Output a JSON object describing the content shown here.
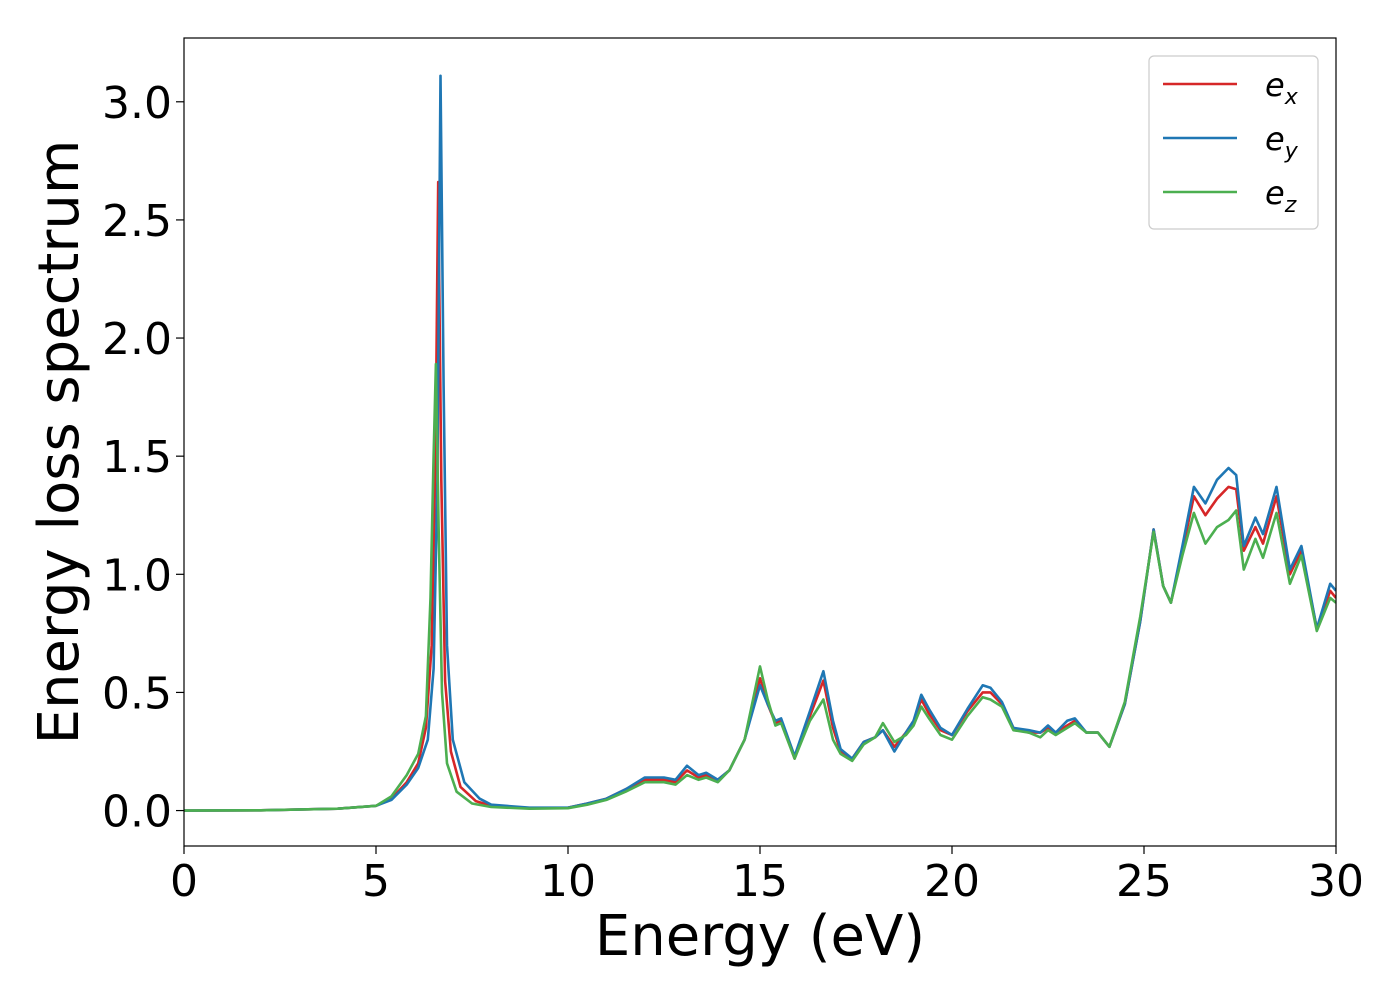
{
  "chart_data": {
    "type": "line",
    "title": "",
    "xlabel": "Energy (eV)",
    "ylabel": "Energy loss spectrum",
    "xlim": [
      0,
      30
    ],
    "ylim": [
      -0.15,
      3.27
    ],
    "xticks": [
      "0",
      "5",
      "10",
      "15",
      "20",
      "25",
      "30"
    ],
    "yticks": [
      "0.0",
      "0.5",
      "1.0",
      "1.5",
      "2.0",
      "2.5",
      "3.0"
    ],
    "grid": false,
    "legend_position": "top-right",
    "series": [
      {
        "name": "e_x",
        "legend_base": "e",
        "legend_sub": "x",
        "color": "#d62728",
        "points": [
          [
            0,
            0
          ],
          [
            2,
            0.001
          ],
          [
            4,
            0.008
          ],
          [
            5,
            0.02
          ],
          [
            5.4,
            0.05
          ],
          [
            5.8,
            0.12
          ],
          [
            6.1,
            0.2
          ],
          [
            6.3,
            0.35
          ],
          [
            6.45,
            0.7
          ],
          [
            6.55,
            1.5
          ],
          [
            6.62,
            2.66
          ],
          [
            6.7,
            1.4
          ],
          [
            6.8,
            0.55
          ],
          [
            6.95,
            0.25
          ],
          [
            7.2,
            0.1
          ],
          [
            7.6,
            0.04
          ],
          [
            8,
            0.02
          ],
          [
            9,
            0.01
          ],
          [
            10,
            0.012
          ],
          [
            10.5,
            0.03
          ],
          [
            11,
            0.05
          ],
          [
            11.5,
            0.09
          ],
          [
            12,
            0.13
          ],
          [
            12.5,
            0.13
          ],
          [
            12.8,
            0.12
          ],
          [
            13.1,
            0.17
          ],
          [
            13.4,
            0.14
          ],
          [
            13.6,
            0.15
          ],
          [
            13.9,
            0.13
          ],
          [
            14.2,
            0.17
          ],
          [
            14.6,
            0.3
          ],
          [
            15,
            0.56
          ],
          [
            15.2,
            0.45
          ],
          [
            15.4,
            0.37
          ],
          [
            15.55,
            0.38
          ],
          [
            15.9,
            0.22
          ],
          [
            16.3,
            0.4
          ],
          [
            16.65,
            0.55
          ],
          [
            16.9,
            0.35
          ],
          [
            17.1,
            0.25
          ],
          [
            17.4,
            0.22
          ],
          [
            17.7,
            0.29
          ],
          [
            18,
            0.31
          ],
          [
            18.2,
            0.34
          ],
          [
            18.5,
            0.27
          ],
          [
            18.8,
            0.33
          ],
          [
            19,
            0.38
          ],
          [
            19.2,
            0.47
          ],
          [
            19.4,
            0.41
          ],
          [
            19.7,
            0.34
          ],
          [
            20,
            0.32
          ],
          [
            20.4,
            0.42
          ],
          [
            20.8,
            0.5
          ],
          [
            21,
            0.5
          ],
          [
            21.3,
            0.45
          ],
          [
            21.6,
            0.35
          ],
          [
            22,
            0.33
          ],
          [
            22.3,
            0.33
          ],
          [
            22.5,
            0.35
          ],
          [
            22.7,
            0.33
          ],
          [
            23,
            0.36
          ],
          [
            23.2,
            0.38
          ],
          [
            23.5,
            0.33
          ],
          [
            23.8,
            0.33
          ],
          [
            24.1,
            0.27
          ],
          [
            24.5,
            0.45
          ],
          [
            24.9,
            0.8
          ],
          [
            25.25,
            1.19
          ],
          [
            25.5,
            0.95
          ],
          [
            25.7,
            0.88
          ],
          [
            26,
            1.1
          ],
          [
            26.3,
            1.33
          ],
          [
            26.6,
            1.25
          ],
          [
            26.9,
            1.32
          ],
          [
            27.2,
            1.37
          ],
          [
            27.4,
            1.36
          ],
          [
            27.6,
            1.1
          ],
          [
            27.9,
            1.2
          ],
          [
            28.1,
            1.13
          ],
          [
            28.45,
            1.33
          ],
          [
            28.8,
            1.0
          ],
          [
            29.1,
            1.1
          ],
          [
            29.5,
            0.77
          ],
          [
            29.85,
            0.93
          ],
          [
            30,
            0.9
          ]
        ]
      },
      {
        "name": "e_y",
        "legend_base": "e",
        "legend_sub": "y",
        "color": "#1f77b4",
        "points": [
          [
            0,
            0
          ],
          [
            2,
            0.001
          ],
          [
            4,
            0.008
          ],
          [
            5,
            0.02
          ],
          [
            5.4,
            0.045
          ],
          [
            5.8,
            0.11
          ],
          [
            6.1,
            0.18
          ],
          [
            6.35,
            0.3
          ],
          [
            6.5,
            0.6
          ],
          [
            6.6,
            1.4
          ],
          [
            6.68,
            3.11
          ],
          [
            6.76,
            1.8
          ],
          [
            6.85,
            0.7
          ],
          [
            7,
            0.3
          ],
          [
            7.3,
            0.12
          ],
          [
            7.7,
            0.05
          ],
          [
            8,
            0.025
          ],
          [
            9,
            0.012
          ],
          [
            10,
            0.012
          ],
          [
            10.5,
            0.03
          ],
          [
            11,
            0.05
          ],
          [
            11.5,
            0.09
          ],
          [
            12,
            0.14
          ],
          [
            12.5,
            0.14
          ],
          [
            12.8,
            0.13
          ],
          [
            13.1,
            0.19
          ],
          [
            13.4,
            0.15
          ],
          [
            13.6,
            0.16
          ],
          [
            13.9,
            0.13
          ],
          [
            14.2,
            0.17
          ],
          [
            14.6,
            0.3
          ],
          [
            15,
            0.53
          ],
          [
            15.2,
            0.45
          ],
          [
            15.4,
            0.38
          ],
          [
            15.55,
            0.39
          ],
          [
            15.9,
            0.23
          ],
          [
            16.3,
            0.42
          ],
          [
            16.65,
            0.59
          ],
          [
            16.9,
            0.38
          ],
          [
            17.1,
            0.26
          ],
          [
            17.4,
            0.22
          ],
          [
            17.7,
            0.29
          ],
          [
            18,
            0.31
          ],
          [
            18.2,
            0.34
          ],
          [
            18.5,
            0.25
          ],
          [
            18.8,
            0.33
          ],
          [
            19,
            0.38
          ],
          [
            19.2,
            0.49
          ],
          [
            19.4,
            0.43
          ],
          [
            19.7,
            0.35
          ],
          [
            20,
            0.32
          ],
          [
            20.4,
            0.43
          ],
          [
            20.8,
            0.53
          ],
          [
            21,
            0.52
          ],
          [
            21.3,
            0.46
          ],
          [
            21.6,
            0.35
          ],
          [
            22,
            0.34
          ],
          [
            22.3,
            0.33
          ],
          [
            22.5,
            0.36
          ],
          [
            22.7,
            0.33
          ],
          [
            23,
            0.38
          ],
          [
            23.2,
            0.39
          ],
          [
            23.5,
            0.33
          ],
          [
            23.8,
            0.33
          ],
          [
            24.1,
            0.27
          ],
          [
            24.5,
            0.45
          ],
          [
            24.9,
            0.8
          ],
          [
            25.25,
            1.19
          ],
          [
            25.5,
            0.95
          ],
          [
            25.7,
            0.88
          ],
          [
            26,
            1.12
          ],
          [
            26.3,
            1.37
          ],
          [
            26.6,
            1.3
          ],
          [
            26.9,
            1.4
          ],
          [
            27.2,
            1.45
          ],
          [
            27.4,
            1.42
          ],
          [
            27.6,
            1.12
          ],
          [
            27.9,
            1.24
          ],
          [
            28.1,
            1.17
          ],
          [
            28.45,
            1.37
          ],
          [
            28.8,
            1.02
          ],
          [
            29.1,
            1.12
          ],
          [
            29.5,
            0.77
          ],
          [
            29.85,
            0.96
          ],
          [
            30,
            0.93
          ]
        ]
      },
      {
        "name": "e_z",
        "legend_base": "e",
        "legend_sub": "z",
        "color": "#4caf50",
        "points": [
          [
            0,
            0
          ],
          [
            2,
            0.001
          ],
          [
            4,
            0.008
          ],
          [
            5,
            0.02
          ],
          [
            5.4,
            0.06
          ],
          [
            5.8,
            0.15
          ],
          [
            6.1,
            0.24
          ],
          [
            6.3,
            0.4
          ],
          [
            6.42,
            0.9
          ],
          [
            6.5,
            1.5
          ],
          [
            6.56,
            1.89
          ],
          [
            6.63,
            1.2
          ],
          [
            6.72,
            0.5
          ],
          [
            6.85,
            0.2
          ],
          [
            7.1,
            0.08
          ],
          [
            7.5,
            0.03
          ],
          [
            8,
            0.015
          ],
          [
            9,
            0.008
          ],
          [
            10,
            0.01
          ],
          [
            10.5,
            0.025
          ],
          [
            11,
            0.045
          ],
          [
            11.5,
            0.08
          ],
          [
            12,
            0.12
          ],
          [
            12.5,
            0.12
          ],
          [
            12.8,
            0.11
          ],
          [
            13.1,
            0.15
          ],
          [
            13.4,
            0.13
          ],
          [
            13.6,
            0.14
          ],
          [
            13.9,
            0.12
          ],
          [
            14.2,
            0.17
          ],
          [
            14.6,
            0.3
          ],
          [
            15,
            0.61
          ],
          [
            15.2,
            0.47
          ],
          [
            15.4,
            0.36
          ],
          [
            15.55,
            0.37
          ],
          [
            15.9,
            0.22
          ],
          [
            16.3,
            0.38
          ],
          [
            16.65,
            0.47
          ],
          [
            16.9,
            0.3
          ],
          [
            17.1,
            0.24
          ],
          [
            17.4,
            0.21
          ],
          [
            17.7,
            0.28
          ],
          [
            18,
            0.31
          ],
          [
            18.2,
            0.37
          ],
          [
            18.5,
            0.29
          ],
          [
            18.8,
            0.32
          ],
          [
            19,
            0.36
          ],
          [
            19.2,
            0.44
          ],
          [
            19.4,
            0.39
          ],
          [
            19.7,
            0.32
          ],
          [
            20,
            0.3
          ],
          [
            20.4,
            0.4
          ],
          [
            20.8,
            0.48
          ],
          [
            21,
            0.47
          ],
          [
            21.3,
            0.44
          ],
          [
            21.6,
            0.34
          ],
          [
            22,
            0.33
          ],
          [
            22.3,
            0.31
          ],
          [
            22.5,
            0.34
          ],
          [
            22.7,
            0.32
          ],
          [
            23,
            0.35
          ],
          [
            23.2,
            0.37
          ],
          [
            23.5,
            0.33
          ],
          [
            23.8,
            0.33
          ],
          [
            24.1,
            0.27
          ],
          [
            24.5,
            0.46
          ],
          [
            24.9,
            0.82
          ],
          [
            25.25,
            1.18
          ],
          [
            25.5,
            0.95
          ],
          [
            25.7,
            0.88
          ],
          [
            26,
            1.08
          ],
          [
            26.3,
            1.26
          ],
          [
            26.6,
            1.13
          ],
          [
            26.9,
            1.2
          ],
          [
            27.2,
            1.23
          ],
          [
            27.4,
            1.27
          ],
          [
            27.6,
            1.02
          ],
          [
            27.9,
            1.15
          ],
          [
            28.1,
            1.07
          ],
          [
            28.45,
            1.26
          ],
          [
            28.8,
            0.96
          ],
          [
            29.1,
            1.08
          ],
          [
            29.5,
            0.76
          ],
          [
            29.85,
            0.9
          ],
          [
            30,
            0.88
          ]
        ]
      }
    ]
  }
}
